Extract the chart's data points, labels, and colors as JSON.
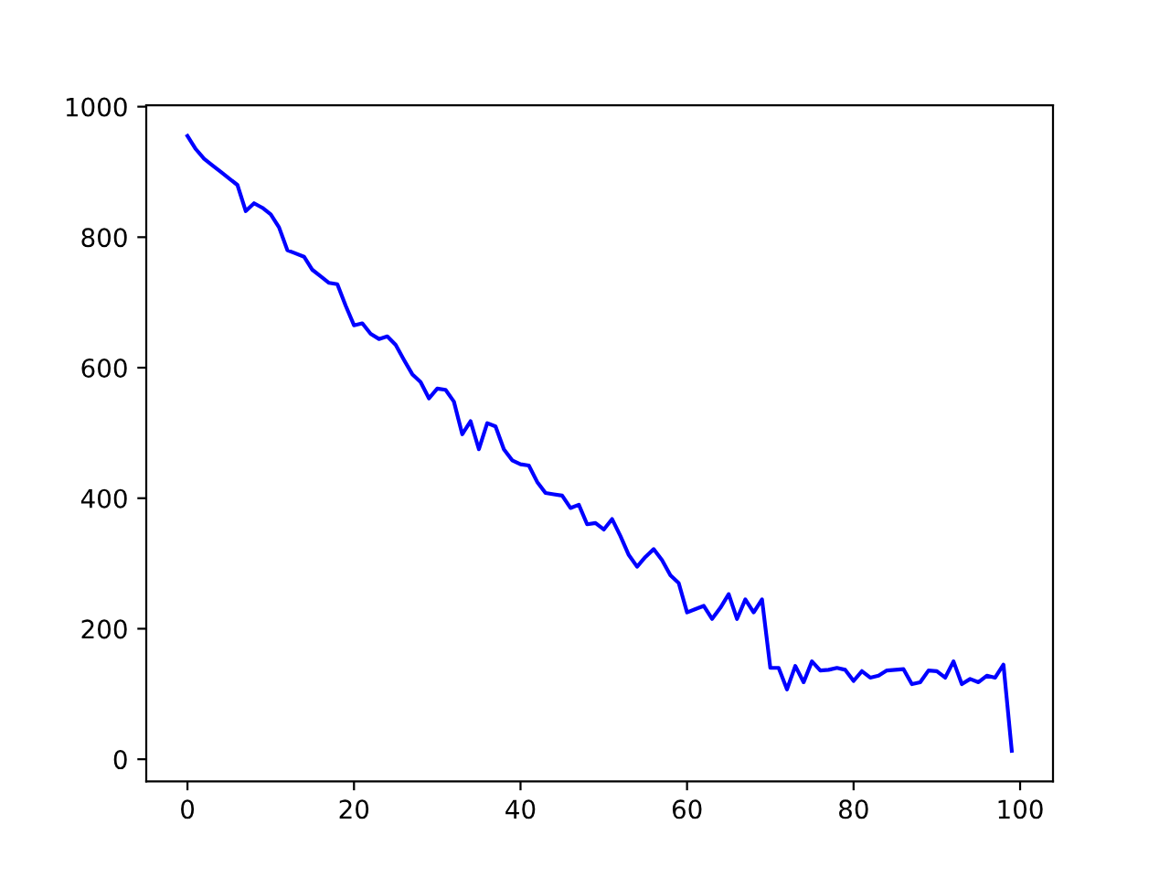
{
  "chart_data": {
    "type": "line",
    "x": [
      0,
      1,
      2,
      3,
      4,
      5,
      6,
      7,
      8,
      9,
      10,
      11,
      12,
      13,
      14,
      15,
      16,
      17,
      18,
      19,
      20,
      21,
      22,
      23,
      24,
      25,
      26,
      27,
      28,
      29,
      30,
      31,
      32,
      33,
      34,
      35,
      36,
      37,
      38,
      39,
      40,
      41,
      42,
      43,
      44,
      45,
      46,
      47,
      48,
      49,
      50,
      51,
      52,
      53,
      54,
      55,
      56,
      57,
      58,
      59,
      60,
      61,
      62,
      63,
      64,
      65,
      66,
      67,
      68,
      69,
      70,
      71,
      72,
      73,
      74,
      75,
      76,
      77,
      78,
      79,
      80,
      81,
      82,
      83,
      84,
      85,
      86,
      87,
      88,
      89,
      90,
      91,
      92,
      93,
      94,
      95,
      96,
      97,
      98,
      99
    ],
    "series": [
      {
        "color": "#0000ff",
        "values": [
          955,
          935,
          920,
          910,
          900,
          890,
          880,
          840,
          852,
          845,
          835,
          815,
          780,
          775,
          770,
          750,
          740,
          730,
          728,
          695,
          665,
          668,
          652,
          644,
          648,
          635,
          612,
          590,
          578,
          553,
          568,
          566,
          548,
          498,
          518,
          475,
          515,
          510,
          475,
          458,
          452,
          450,
          425,
          408,
          406,
          404,
          385,
          390,
          360,
          362,
          352,
          368,
          342,
          313,
          295,
          310,
          322,
          305,
          282,
          270,
          225,
          230,
          235,
          215,
          232,
          253,
          215,
          245,
          225,
          245,
          140,
          140,
          107,
          143,
          118,
          150,
          136,
          137,
          140,
          137,
          120,
          135,
          125,
          128,
          136,
          137,
          138,
          115,
          118,
          136,
          135,
          125,
          150,
          115,
          123,
          118,
          128,
          125,
          145,
          13
        ]
      }
    ],
    "xlim": [
      -4.95,
      103.95
    ],
    "ylim": [
      -34,
      1002
    ],
    "xticks": [
      0,
      20,
      40,
      60,
      80,
      100
    ],
    "yticks": [
      0,
      200,
      400,
      600,
      800,
      1000
    ],
    "grid": false,
    "marker": "none",
    "line_style": "solid"
  }
}
